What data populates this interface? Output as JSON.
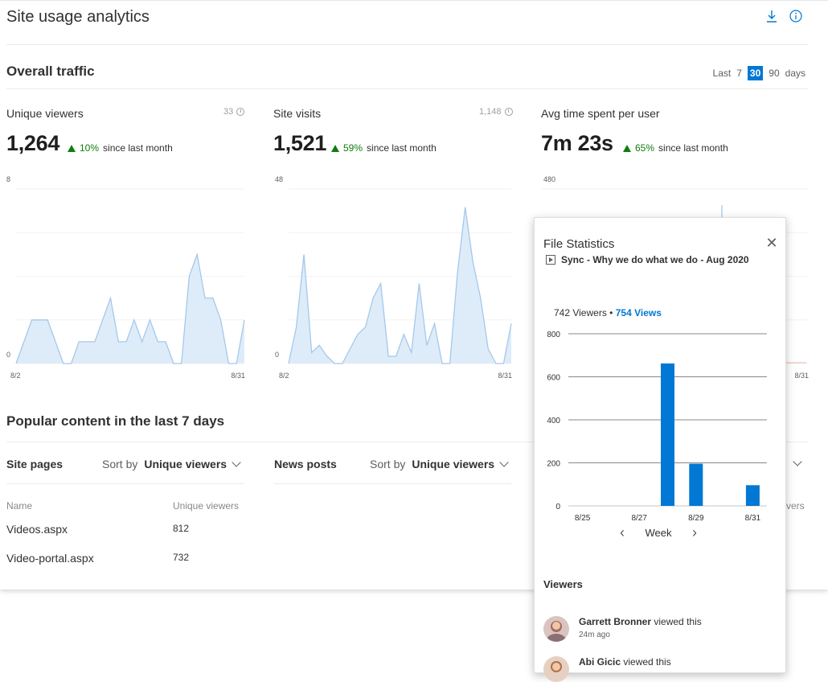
{
  "header": {
    "title": "Site usage analytics",
    "download_icon": "download-icon",
    "info_icon": "info-icon"
  },
  "traffic": {
    "heading": "Overall traffic",
    "range": {
      "label": "Last",
      "options": [
        "7",
        "30",
        "90"
      ],
      "selected": "30",
      "suffix": "days"
    }
  },
  "metrics": [
    {
      "label": "Unique viewers",
      "count": "33",
      "value": "1,264",
      "delta": "10%",
      "since": "since last month"
    },
    {
      "label": "Site visits",
      "count": "1,148",
      "value": "1,521",
      "delta": "59%",
      "since": "since last month"
    },
    {
      "label": "Avg time spent per user",
      "count": "",
      "value": "7m 23s",
      "delta": "65%",
      "since": "since last month"
    }
  ],
  "chart_data": [
    {
      "type": "area",
      "title": "Unique viewers",
      "ylim": [
        0,
        8
      ],
      "y_ticks": [
        "8",
        "0"
      ],
      "x_ticks": [
        "8/2",
        "8/31"
      ],
      "series": [
        {
          "values": [
            0,
            1,
            2,
            2,
            2,
            1,
            0,
            0,
            1,
            1,
            1,
            2,
            3,
            1,
            1,
            2,
            1,
            2,
            1,
            1,
            0,
            0,
            4,
            5,
            3,
            3,
            2,
            0,
            0,
            2
          ]
        }
      ]
    },
    {
      "type": "area",
      "title": "Site visits",
      "ylim": [
        0,
        48
      ],
      "y_ticks": [
        "48",
        "0"
      ],
      "x_ticks": [
        "8/2",
        "8/31"
      ],
      "series": [
        {
          "values": [
            0,
            10,
            30,
            3,
            5,
            2,
            0,
            0,
            4,
            8,
            10,
            18,
            22,
            2,
            2,
            8,
            3,
            22,
            5,
            11,
            0,
            0,
            25,
            43,
            28,
            18,
            4,
            0,
            0,
            11
          ]
        }
      ]
    },
    {
      "type": "area",
      "title": "Avg time spent per user",
      "ylim": [
        0,
        480
      ],
      "y_ticks": [
        "480"
      ],
      "x_ticks": [
        "8/31"
      ],
      "series": [
        {
          "values": []
        }
      ]
    },
    {
      "type": "bar",
      "title": "File Statistics",
      "categories": [
        "8/25",
        "8/26",
        "8/27",
        "8/28",
        "8/29",
        "8/30",
        "8/31"
      ],
      "x_ticks": [
        "8/25",
        "8/27",
        "8/29",
        "8/31"
      ],
      "values": [
        0,
        0,
        0,
        662,
        196,
        0,
        96
      ],
      "ylim": [
        0,
        800
      ],
      "y_ticks": [
        "800",
        "600",
        "400",
        "200",
        "0"
      ],
      "xlabel": "Week",
      "color": "#0078d4"
    }
  ],
  "popular": {
    "heading": "Popular content in the last 7 days",
    "site_pages": {
      "label": "Site pages",
      "sort_by": "Sort by",
      "sort_value": "Unique viewers",
      "col_name": "Name",
      "col_value": "Unique viewers",
      "rows": [
        {
          "name": "Videos.aspx",
          "value": "812"
        },
        {
          "name": "Video-portal.aspx",
          "value": "732"
        }
      ]
    },
    "news_posts": {
      "label": "News posts",
      "sort_by": "Sort by",
      "sort_value": "Unique viewers"
    },
    "third_col_header_fragment": "vers"
  },
  "popup": {
    "title": "File Statistics",
    "file_name": "Sync - Why we do what we do - Aug 2020",
    "viewers_count": "742 Viewers",
    "bullet": "•",
    "views_count": "754 Views",
    "week_label": "Week",
    "viewers_heading": "Viewers",
    "viewers": [
      {
        "name": "Garrett Bronner",
        "action": "viewed this",
        "time": "24m ago"
      },
      {
        "name": "Abi Gicic",
        "action": "viewed this",
        "time": ""
      }
    ],
    "accent": "#0078d4"
  }
}
